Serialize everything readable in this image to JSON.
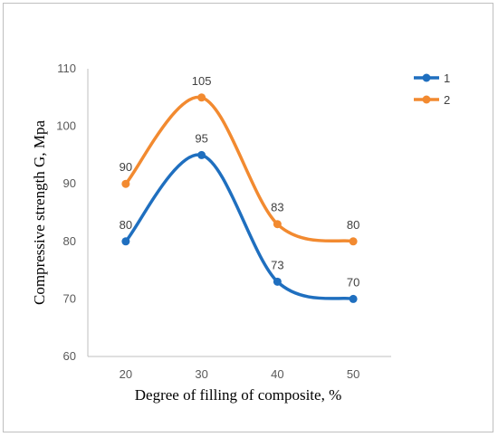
{
  "chart_data": {
    "type": "line",
    "title": "",
    "xlabel": "Degree of filling of composite, %",
    "ylabel": "Compressive strength G, Mpa",
    "x": [
      20,
      30,
      40,
      50
    ],
    "ylim": [
      60,
      110
    ],
    "yticks": [
      60,
      70,
      80,
      90,
      100,
      110
    ],
    "grid": false,
    "legend_position": "top-right",
    "smooth": true,
    "series": [
      {
        "name": "1",
        "values": [
          80,
          95,
          73,
          70
        ],
        "color": "#1f6fbf"
      },
      {
        "name": "2",
        "values": [
          90,
          105,
          83,
          80
        ],
        "color": "#f28a30"
      }
    ]
  }
}
